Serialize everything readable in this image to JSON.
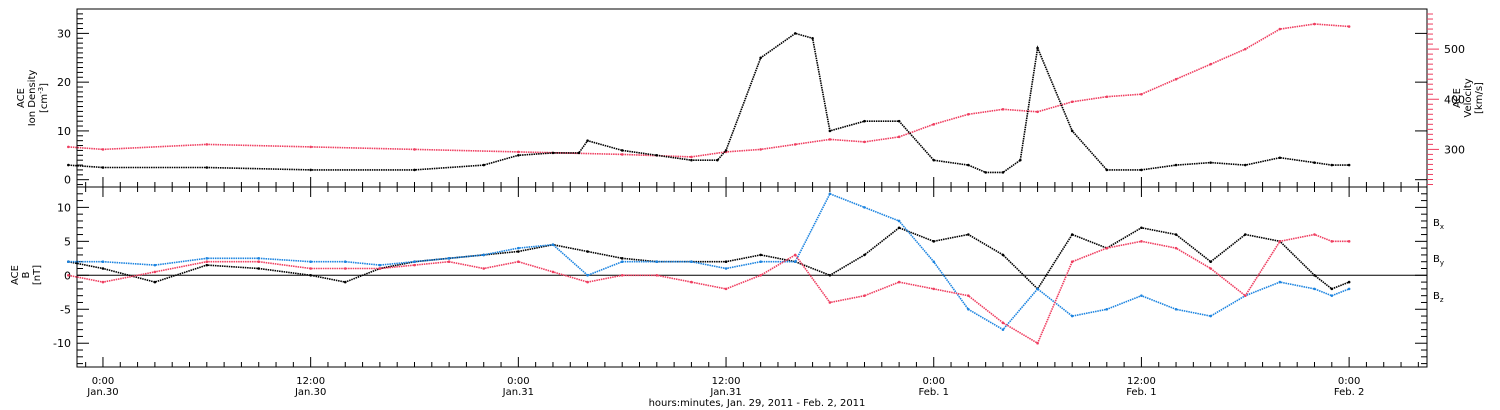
{
  "chart_data": [
    {
      "type": "scatter",
      "panel": "top",
      "ylabel_left": [
        "ACE",
        "Ion Density",
        "[cm",
        "-3",
        "]"
      ],
      "ylabel_right": [
        "ACE",
        "Velocity",
        "[km/s]"
      ],
      "ylim_left": [
        -1.5,
        35
      ],
      "ylim_right": [
        225,
        580
      ],
      "yticks_left": [
        "0",
        "10",
        "20",
        "30"
      ],
      "yticks_right": [
        "300",
        "400",
        "500"
      ],
      "series": [
        {
          "color": "#000000",
          "axis": "left",
          "x": [
            -2,
            0,
            6,
            12,
            18,
            22,
            24,
            26,
            27.5,
            28,
            30,
            32,
            34,
            35.5,
            36,
            38,
            40,
            41,
            42,
            44,
            46,
            48,
            50,
            51,
            52,
            53,
            54,
            56,
            58,
            60,
            62,
            64,
            66,
            68,
            70,
            71,
            72
          ],
          "values": [
            3,
            2.5,
            2.5,
            2,
            2,
            3,
            5,
            5.5,
            5.5,
            8,
            6,
            5,
            4,
            4,
            6,
            25,
            30,
            29,
            10,
            12,
            12,
            4,
            3,
            1.5,
            1.5,
            4,
            27,
            10,
            2,
            2,
            3,
            3.5,
            3,
            4.5,
            3.5,
            3,
            3
          ]
        },
        {
          "color": "#ef3e60",
          "axis": "right",
          "x": [
            -2,
            0,
            6,
            12,
            18,
            24,
            30,
            34,
            36,
            38,
            40,
            42,
            44,
            46,
            48,
            50,
            52,
            54,
            56,
            58,
            60,
            62,
            64,
            66,
            68,
            70,
            72
          ],
          "values": [
            305,
            300,
            310,
            305,
            300,
            295,
            290,
            285,
            295,
            300,
            310,
            320,
            315,
            325,
            350,
            370,
            380,
            375,
            395,
            405,
            410,
            440,
            470,
            500,
            540,
            550,
            545
          ]
        }
      ]
    },
    {
      "type": "scatter",
      "panel": "bottom",
      "ylabel": [
        "ACE",
        "B",
        "[nT]"
      ],
      "ylim": [
        -13.5,
        13
      ],
      "yticks": [
        "-10",
        "-5",
        "0",
        "5",
        "10"
      ],
      "legend": [
        "B",
        "B",
        "B"
      ],
      "legend_subscripts": [
        "x",
        "y",
        "z"
      ],
      "xlabel": "hours:minutes, Jan. 29, 2011 - Feb. 2, 2011",
      "x_ticks": [
        {
          "x": 0,
          "time": "0:00",
          "date": "Jan.30"
        },
        {
          "x": 12,
          "time": "12:00",
          "date": "Jan.30"
        },
        {
          "x": 24,
          "time": "0:00",
          "date": "Jan.31"
        },
        {
          "x": 36,
          "time": "12:00",
          "date": "Jan.31"
        },
        {
          "x": 48,
          "time": "0:00",
          "date": "Feb. 1"
        },
        {
          "x": 60,
          "time": "12:00",
          "date": "Feb. 1"
        },
        {
          "x": 72,
          "time": "0:00",
          "date": "Feb. 2"
        }
      ],
      "xlim": [
        -1.5,
        76.5
      ],
      "series": [
        {
          "name": "Bx",
          "color": "#000000",
          "x": [
            -2,
            0,
            3,
            6,
            9,
            12,
            14,
            16,
            18,
            20,
            22,
            24,
            26,
            28,
            30,
            32,
            34,
            36,
            38,
            40,
            42,
            44,
            46,
            48,
            50,
            52,
            54,
            56,
            58,
            60,
            62,
            64,
            66,
            68,
            70,
            71,
            72
          ],
          "values": [
            2,
            1,
            -1,
            1.5,
            1,
            0,
            -1,
            1,
            2,
            2.5,
            3,
            3.5,
            4.5,
            3.5,
            2.5,
            2,
            2,
            2,
            3,
            2,
            0,
            3,
            7,
            5,
            6,
            3,
            -2,
            6,
            4,
            7,
            6,
            2,
            6,
            5,
            0,
            -2,
            -1
          ]
        },
        {
          "name": "By",
          "color": "#1c84e0",
          "x": [
            -2,
            0,
            3,
            6,
            9,
            12,
            14,
            16,
            18,
            20,
            22,
            24,
            26,
            28,
            30,
            32,
            34,
            36,
            38,
            40,
            42,
            44,
            46,
            48,
            50,
            52,
            54,
            56,
            58,
            60,
            62,
            64,
            66,
            68,
            70,
            71,
            72
          ],
          "values": [
            2,
            2,
            1.5,
            2.5,
            2.5,
            2,
            2,
            1.5,
            2,
            2.5,
            3,
            4,
            4.5,
            0,
            2,
            2,
            2,
            1,
            2,
            2,
            12,
            10,
            8,
            2,
            -5,
            -8,
            -2,
            -6,
            -5,
            -3,
            -5,
            -6,
            -3,
            -1,
            -2,
            -3,
            -2
          ]
        },
        {
          "name": "Bz",
          "color": "#ef3e60",
          "x": [
            -2,
            0,
            3,
            6,
            9,
            12,
            14,
            16,
            18,
            20,
            22,
            24,
            26,
            28,
            30,
            32,
            34,
            36,
            38,
            40,
            42,
            44,
            46,
            48,
            50,
            52,
            54,
            56,
            58,
            60,
            62,
            64,
            66,
            68,
            70,
            71,
            72
          ],
          "values": [
            0,
            -1,
            0.5,
            2,
            2,
            1,
            1,
            1,
            1.5,
            2,
            1,
            2,
            0.5,
            -1,
            0,
            0,
            -1,
            -2,
            0,
            3,
            -4,
            -3,
            -1,
            -2,
            -3,
            -7,
            -10,
            2,
            4,
            5,
            4,
            1,
            -3,
            5,
            6,
            5,
            5
          ]
        }
      ]
    }
  ]
}
